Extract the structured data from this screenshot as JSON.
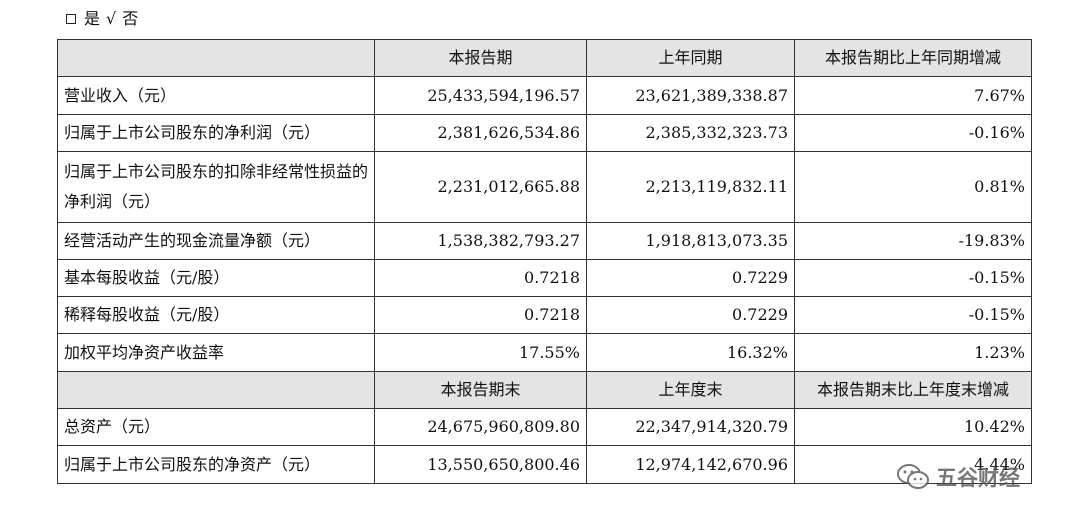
{
  "checkline": {
    "yes": "是",
    "check": "√",
    "no": "否"
  },
  "header1": {
    "col1": "本报告期",
    "col2": "上年同期",
    "col3": "本报告期比上年同期增减"
  },
  "rows1": [
    {
      "label": "营业收入（元）",
      "v1": "25,433,594,196.57",
      "v2": "23,621,389,338.87",
      "v3": "7.67%"
    },
    {
      "label": "归属于上市公司股东的净利润（元）",
      "v1": "2,381,626,534.86",
      "v2": "2,385,332,323.73",
      "v3": "-0.16%"
    },
    {
      "label": "归属于上市公司股东的扣除非经常性损益的净利润（元）",
      "v1": "2,231,012,665.88",
      "v2": "2,213,119,832.11",
      "v3": "0.81%"
    },
    {
      "label": "经营活动产生的现金流量净额（元）",
      "v1": "1,538,382,793.27",
      "v2": "1,918,813,073.35",
      "v3": "-19.83%"
    },
    {
      "label": "基本每股收益（元/股）",
      "v1": "0.7218",
      "v2": "0.7229",
      "v3": "-0.15%"
    },
    {
      "label": "稀释每股收益（元/股）",
      "v1": "0.7218",
      "v2": "0.7229",
      "v3": "-0.15%"
    },
    {
      "label": "加权平均净资产收益率",
      "v1": "17.55%",
      "v2": "16.32%",
      "v3": "1.23%"
    }
  ],
  "header2": {
    "col1": "本报告期末",
    "col2": "上年度末",
    "col3": "本报告期末比上年度末增减"
  },
  "rows2": [
    {
      "label": "总资产（元）",
      "v1": "24,675,960,809.80",
      "v2": "22,347,914,320.79",
      "v3": "10.42%"
    },
    {
      "label": "归属于上市公司股东的净资产（元）",
      "v1": "13,550,650,800.46",
      "v2": "12,974,142,670.96",
      "v3": "4.44%"
    }
  ],
  "watermark": {
    "text": "五谷财经",
    "icon": "wechat-icon"
  }
}
